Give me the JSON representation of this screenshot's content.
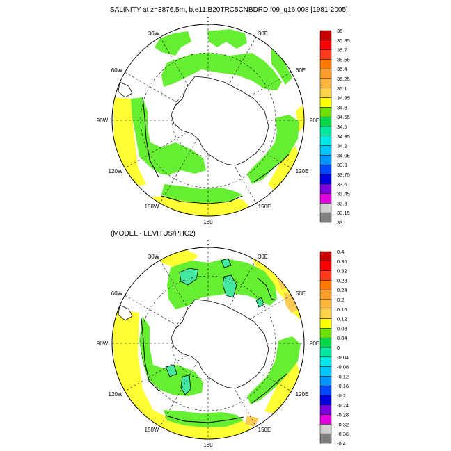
{
  "figure": {
    "title": "SALINITY at z=3876.5m, b.e11.B20TRC5CNBDRD.f09_g16.008 [1981-2005]",
    "subtitle": "(MODEL - LEVITUS/PHC2)"
  },
  "longitude_labels": [
    "0",
    "30E",
    "60E",
    "90E",
    "120E",
    "150E",
    "180",
    "150W",
    "120W",
    "90W",
    "60W",
    "30W"
  ],
  "colorbar_top": {
    "levels": [
      "36",
      "35.85",
      "35.7",
      "35.55",
      "35.4",
      "35.25",
      "35.1",
      "34.95",
      "34.8",
      "34.65",
      "34.5",
      "34.35",
      "34.2",
      "34.05",
      "33.9",
      "33.75",
      "33.6",
      "33.45",
      "33.3",
      "33.15",
      "33"
    ],
    "colors": [
      "#c80000",
      "#ff0000",
      "#ff3a1a",
      "#ff7a00",
      "#ff9d28",
      "#ffb43c",
      "#ffd24a",
      "#ffff00",
      "#6fe000",
      "#00d84a",
      "#00e8a0",
      "#00e8e8",
      "#00c8ff",
      "#0096ff",
      "#0048ff",
      "#0000e0",
      "#7a00e0",
      "#e000e0",
      "#d0d0d0",
      "#808080"
    ]
  },
  "colorbar_bottom": {
    "levels": [
      "0.4",
      "0.36",
      "0.32",
      "0.28",
      "0.24",
      "0.2",
      "0.16",
      "0.12",
      "0.08",
      "0.04",
      "0",
      "-0.04",
      "-0.08",
      "-0.12",
      "-0.16",
      "-0.2",
      "-0.24",
      "-0.28",
      "-0.32",
      "-0.36",
      "-0.4"
    ],
    "colors": [
      "#c80000",
      "#ff0000",
      "#ff3a1a",
      "#ff7a00",
      "#ff9d28",
      "#ffb43c",
      "#ffd24a",
      "#ffff00",
      "#6fe000",
      "#00d84a",
      "#00e8a0",
      "#00e8e8",
      "#00c8ff",
      "#0096ff",
      "#0048ff",
      "#0000e0",
      "#7a00e0",
      "#e000e0",
      "#d0d0d0",
      "#808080"
    ]
  },
  "palette": {
    "green": "#66ee33",
    "yellow": "#ffff33",
    "teal": "#44e8a0",
    "orange": "#ffcc55"
  }
}
